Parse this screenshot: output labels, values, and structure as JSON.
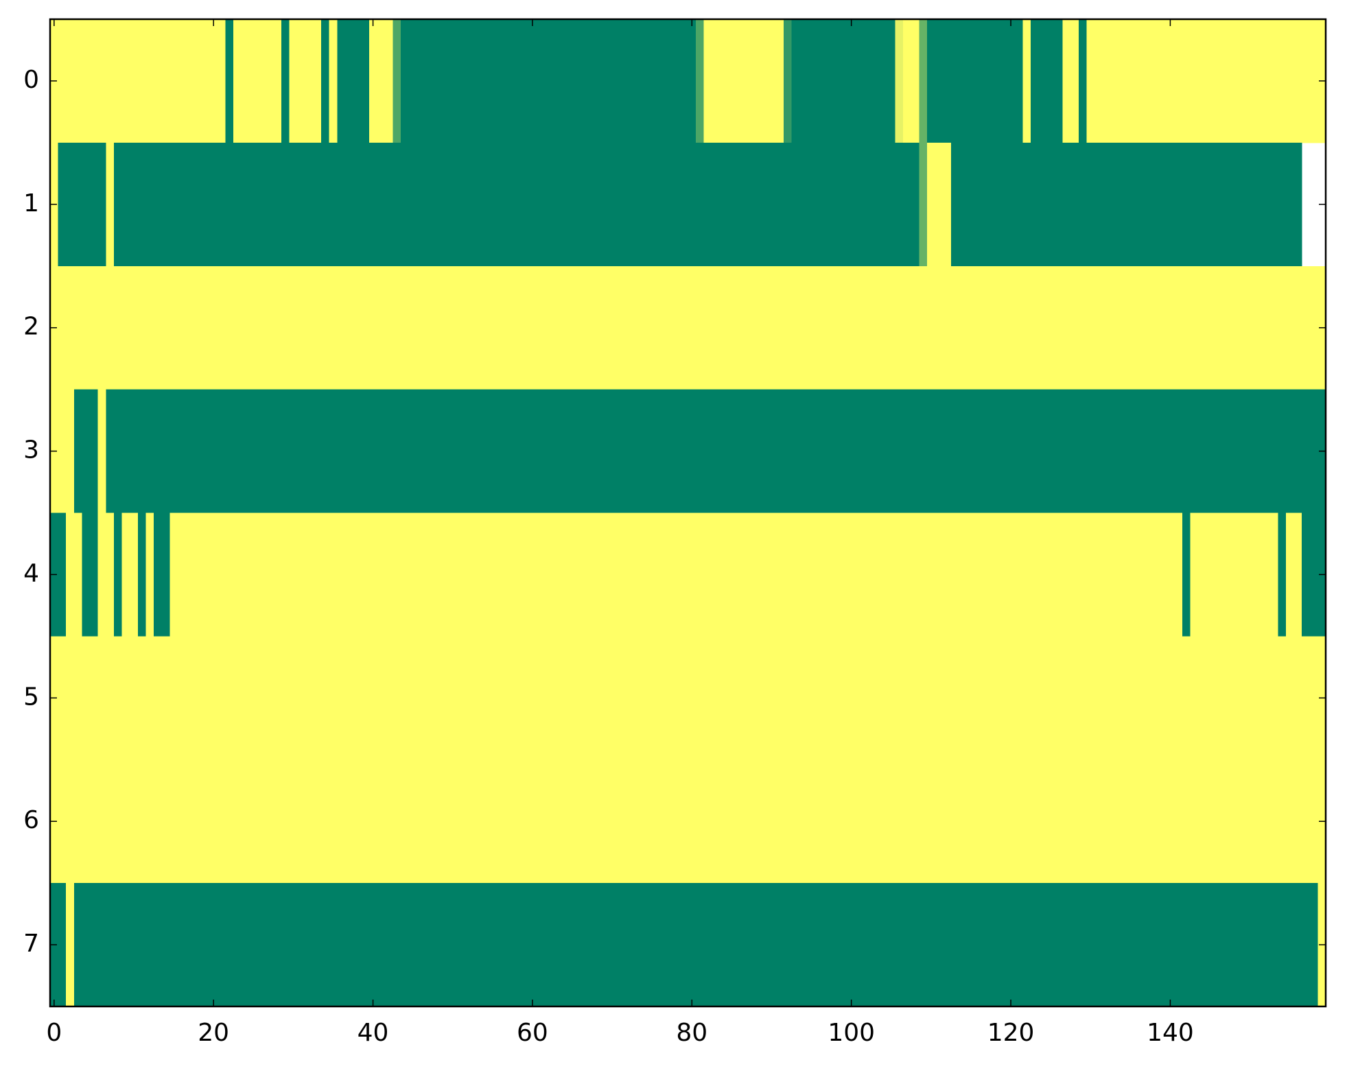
{
  "chart_data": {
    "type": "heatmap",
    "colormap": [
      "#008066",
      "#ffff66"
    ],
    "clim": [
      0,
      1
    ],
    "xlim": [
      -0.5,
      159.5
    ],
    "ylim": [
      7.5,
      -0.5
    ],
    "xticks": [
      0,
      20,
      40,
      60,
      80,
      100,
      120,
      140
    ],
    "yticks": [
      0,
      1,
      2,
      3,
      4,
      5,
      6,
      7
    ],
    "values": [
      [
        1,
        1,
        1,
        1,
        1,
        1,
        1,
        1,
        1,
        1,
        1,
        1,
        1,
        1,
        1,
        1,
        1,
        1,
        1,
        1,
        1,
        1,
        0,
        1,
        1,
        1,
        1,
        1,
        1,
        0,
        1,
        1,
        1,
        1,
        0,
        1,
        0,
        0,
        0,
        0,
        1,
        1,
        1,
        0.3,
        0,
        0,
        0,
        0,
        0,
        0,
        0,
        0,
        0,
        0,
        0,
        0,
        0,
        0,
        0,
        0,
        0,
        0,
        0,
        0,
        0,
        0,
        0,
        0,
        0,
        0,
        0,
        0,
        0,
        0,
        0,
        0,
        0,
        0,
        0,
        0,
        0,
        0.3,
        1,
        1,
        1,
        1,
        1,
        1,
        1,
        1,
        1,
        1,
        0.2,
        0,
        0,
        0,
        0,
        0,
        0,
        0,
        0,
        0,
        0,
        0,
        0,
        0,
        0.9,
        1,
        1,
        0.4,
        0,
        0,
        0,
        0,
        0,
        0,
        0,
        0,
        0,
        0,
        0,
        0,
        1,
        0,
        0,
        0,
        0,
        1,
        1,
        0,
        1,
        1,
        1,
        1,
        1,
        1,
        1,
        1,
        1,
        1,
        1,
        1,
        1,
        1,
        1,
        1,
        1,
        1,
        1,
        1,
        1,
        1,
        1,
        1,
        1,
        1,
        1,
        1,
        1,
        1
      ],
      [
        1,
        0,
        0,
        0,
        0,
        0,
        0,
        1,
        0,
        0,
        0,
        0,
        0,
        0,
        0,
        0,
        0,
        0,
        0,
        0,
        0,
        0,
        0,
        0,
        0,
        0,
        0,
        0,
        0,
        0,
        0,
        0,
        0,
        0,
        0,
        0,
        0,
        0,
        0,
        0,
        0,
        0,
        0,
        0,
        0,
        0,
        0,
        0,
        0,
        0,
        0,
        0,
        0,
        0,
        0,
        0,
        0,
        0,
        0,
        0,
        0,
        0,
        0,
        0,
        0,
        0,
        0,
        0,
        0,
        0,
        0,
        0,
        0,
        0,
        0,
        0,
        0,
        0,
        0,
        0,
        0,
        0,
        0,
        0,
        0,
        0,
        0,
        0,
        0,
        0,
        0,
        0,
        0,
        0,
        0,
        0,
        0,
        0,
        0,
        0,
        0,
        0,
        0,
        0,
        0,
        0,
        0,
        0,
        0,
        0.4,
        1,
        1,
        1,
        0,
        0,
        0,
        0,
        0,
        0,
        0,
        0,
        0,
        0,
        0,
        0,
        0,
        0,
        0,
        0,
        0,
        0,
        0,
        0,
        0,
        0,
        0,
        0,
        0,
        0,
        0,
        0,
        0,
        0,
        0,
        0,
        0,
        0,
        0,
        0,
        0,
        0,
        0,
        0,
        0,
        0,
        0,
        0
      ],
      [
        1,
        1,
        1,
        1,
        1,
        1,
        1,
        1,
        1,
        1,
        1,
        1,
        1,
        1,
        1,
        1,
        1,
        1,
        1,
        1,
        1,
        1,
        1,
        1,
        1,
        1,
        1,
        1,
        1,
        1,
        1,
        1,
        1,
        1,
        1,
        1,
        1,
        1,
        1,
        1,
        1,
        1,
        1,
        1,
        1,
        1,
        1,
        1,
        1,
        1,
        1,
        1,
        1,
        1,
        1,
        1,
        1,
        1,
        1,
        1,
        1,
        1,
        1,
        1,
        1,
        1,
        1,
        1,
        1,
        1,
        1,
        1,
        1,
        1,
        1,
        1,
        1,
        1,
        1,
        1,
        1,
        1,
        1,
        1,
        1,
        1,
        1,
        1,
        1,
        1,
        1,
        1,
        1,
        1,
        1,
        1,
        1,
        1,
        1,
        1,
        1,
        1,
        1,
        1,
        1,
        1,
        1,
        1,
        1,
        1,
        1,
        1,
        1,
        1,
        1,
        1,
        1,
        1,
        1,
        1,
        1,
        1,
        1,
        1,
        1,
        1,
        1,
        1,
        1,
        1,
        1,
        1,
        1,
        1,
        1,
        1,
        1,
        1,
        1,
        1,
        1,
        1,
        1,
        1,
        1,
        1,
        1,
        1,
        1,
        1,
        1,
        1,
        1,
        1,
        1,
        1,
        1,
        1,
        1,
        1
      ],
      [
        1,
        1,
        1,
        0,
        0,
        0,
        1,
        0,
        0,
        0,
        0,
        0,
        0,
        0,
        0,
        0,
        0,
        0,
        0,
        0,
        0,
        0,
        0,
        0,
        0,
        0,
        0,
        0,
        0,
        0,
        0,
        0,
        0,
        0,
        0,
        0,
        0,
        0,
        0,
        0,
        0,
        0,
        0,
        0,
        0,
        0,
        0,
        0,
        0,
        0,
        0,
        0,
        0,
        0,
        0,
        0,
        0,
        0,
        0,
        0,
        0,
        0,
        0,
        0,
        0,
        0,
        0,
        0,
        0,
        0,
        0,
        0,
        0,
        0,
        0,
        0,
        0,
        0,
        0,
        0,
        0,
        0,
        0,
        0,
        0,
        0,
        0,
        0,
        0,
        0,
        0,
        0,
        0,
        0,
        0,
        0,
        0,
        0,
        0,
        0,
        0,
        0,
        0,
        0,
        0,
        0,
        0,
        0,
        0,
        0,
        0,
        0,
        0,
        0,
        0,
        0,
        0,
        0,
        0,
        0,
        0,
        0,
        0,
        0,
        0,
        0,
        0,
        0,
        0,
        0,
        0,
        0,
        0,
        0,
        0,
        0,
        0,
        0,
        0,
        0,
        0,
        0,
        0,
        0,
        0,
        0,
        0,
        0,
        0,
        0,
        0,
        0,
        0,
        0,
        0,
        0,
        0,
        0,
        0,
        0
      ],
      [
        0,
        0,
        1,
        1,
        0,
        0,
        1,
        1,
        0,
        1,
        1,
        0,
        1,
        0,
        0,
        1,
        1,
        1,
        1,
        1,
        1,
        1,
        1,
        1,
        1,
        1,
        1,
        1,
        1,
        1,
        1,
        1,
        1,
        1,
        1,
        1,
        1,
        1,
        1,
        1,
        1,
        1,
        1,
        1,
        1,
        1,
        1,
        1,
        1,
        1,
        1,
        1,
        1,
        1,
        1,
        1,
        1,
        1,
        1,
        1,
        1,
        1,
        1,
        1,
        1,
        1,
        1,
        1,
        1,
        1,
        1,
        1,
        1,
        1,
        1,
        1,
        1,
        1,
        1,
        1,
        1,
        1,
        1,
        1,
        1,
        1,
        1,
        1,
        1,
        1,
        1,
        1,
        1,
        1,
        1,
        1,
        1,
        1,
        1,
        1,
        1,
        1,
        1,
        1,
        1,
        1,
        1,
        1,
        1,
        1,
        1,
        1,
        1,
        1,
        1,
        1,
        1,
        1,
        1,
        1,
        1,
        1,
        1,
        1,
        1,
        1,
        1,
        1,
        1,
        1,
        1,
        1,
        1,
        1,
        1,
        1,
        1,
        1,
        1,
        1,
        1,
        1,
        0,
        1,
        1,
        1,
        1,
        1,
        1,
        1,
        1,
        1,
        1,
        1,
        0,
        1,
        1,
        0,
        0,
        0
      ],
      [
        1,
        1,
        1,
        1,
        1,
        1,
        1,
        1,
        1,
        1,
        1,
        1,
        1,
        1,
        1,
        1,
        1,
        1,
        1,
        1,
        1,
        1,
        1,
        1,
        1,
        1,
        1,
        1,
        1,
        1,
        1,
        1,
        1,
        1,
        1,
        1,
        1,
        1,
        1,
        1,
        1,
        1,
        1,
        1,
        1,
        1,
        1,
        1,
        1,
        1,
        1,
        1,
        1,
        1,
        1,
        1,
        1,
        1,
        1,
        1,
        1,
        1,
        1,
        1,
        1,
        1,
        1,
        1,
        1,
        1,
        1,
        1,
        1,
        1,
        1,
        1,
        1,
        1,
        1,
        1,
        1,
        1,
        1,
        1,
        1,
        1,
        1,
        1,
        1,
        1,
        1,
        1,
        1,
        1,
        1,
        1,
        1,
        1,
        1,
        1,
        1,
        1,
        1,
        1,
        1,
        1,
        1,
        1,
        1,
        1,
        1,
        1,
        1,
        1,
        1,
        1,
        1,
        1,
        1,
        1,
        1,
        1,
        1,
        1,
        1,
        1,
        1,
        1,
        1,
        1,
        1,
        1,
        1,
        1,
        1,
        1,
        1,
        1,
        1,
        1,
        1,
        1,
        1,
        1,
        1,
        1,
        1,
        1,
        1,
        1,
        1,
        1,
        1,
        1,
        1,
        1,
        1,
        1,
        1,
        1
      ],
      [
        1,
        1,
        1,
        1,
        1,
        1,
        1,
        1,
        1,
        1,
        1,
        1,
        1,
        1,
        1,
        1,
        1,
        1,
        1,
        1,
        1,
        1,
        1,
        1,
        1,
        1,
        1,
        1,
        1,
        1,
        1,
        1,
        1,
        1,
        1,
        1,
        1,
        1,
        1,
        1,
        1,
        1,
        1,
        1,
        1,
        1,
        1,
        1,
        1,
        1,
        1,
        1,
        1,
        1,
        1,
        1,
        1,
        1,
        1,
        1,
        1,
        1,
        1,
        1,
        1,
        1,
        1,
        1,
        1,
        1,
        1,
        1,
        1,
        1,
        1,
        1,
        1,
        1,
        1,
        1,
        1,
        1,
        1,
        1,
        1,
        1,
        1,
        1,
        1,
        1,
        1,
        1,
        1,
        1,
        1,
        1,
        1,
        1,
        1,
        1,
        1,
        1,
        1,
        1,
        1,
        1,
        1,
        1,
        1,
        1,
        1,
        1,
        1,
        1,
        1,
        1,
        1,
        1,
        1,
        1,
        1,
        1,
        1,
        1,
        1,
        1,
        1,
        1,
        1,
        1,
        1,
        1,
        1,
        1,
        1,
        1,
        1,
        1,
        1,
        1,
        1,
        1,
        1,
        1,
        1,
        1,
        1,
        1,
        1,
        1,
        1,
        1,
        1,
        1,
        1,
        1,
        1,
        1,
        1,
        1
      ],
      [
        0,
        0,
        1,
        0,
        0,
        0,
        0,
        0,
        0,
        0,
        0,
        0,
        0,
        0,
        0,
        0,
        0,
        0,
        0,
        0,
        0,
        0,
        0,
        0,
        0,
        0,
        0,
        0,
        0,
        0,
        0,
        0,
        0,
        0,
        0,
        0,
        0,
        0,
        0,
        0,
        0,
        0,
        0,
        0,
        0,
        0,
        0,
        0,
        0,
        0,
        0,
        0,
        0,
        0,
        0,
        0,
        0,
        0,
        0,
        0,
        0,
        0,
        0,
        0,
        0,
        0,
        0,
        0,
        0,
        0,
        0,
        0,
        0,
        0,
        0,
        0,
        0,
        0,
        0,
        0,
        0,
        0,
        0,
        0,
        0,
        0,
        0,
        0,
        0,
        0,
        0,
        0,
        0,
        0,
        0,
        0,
        0,
        0,
        0,
        0,
        0,
        0,
        0,
        0,
        0,
        0,
        0,
        0,
        0,
        0,
        0,
        0,
        0,
        0,
        0,
        0,
        0,
        0,
        0,
        0,
        0,
        0,
        0,
        0,
        0,
        0,
        0,
        0,
        0,
        0,
        0,
        0,
        0,
        0,
        0,
        0,
        0,
        0,
        0,
        0,
        0,
        0,
        0,
        0,
        0,
        0,
        0,
        0,
        0,
        0,
        0,
        0,
        0,
        0,
        0,
        0,
        0,
        0,
        0,
        1
      ]
    ]
  }
}
